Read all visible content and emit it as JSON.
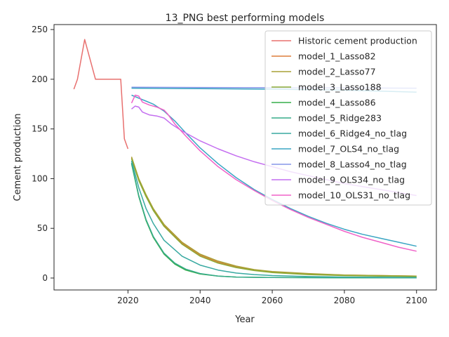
{
  "chart_data": {
    "type": "line",
    "title": "13_PNG best performing models",
    "xlabel": "Year",
    "ylabel": "Cement production",
    "xlim": [
      1999.5,
      2105.5
    ],
    "ylim": [
      -12,
      255
    ],
    "xticks": [
      2020,
      2040,
      2060,
      2080,
      2100
    ],
    "yticks": [
      0,
      50,
      100,
      150,
      200,
      250
    ],
    "grid": false,
    "legend": "top-right",
    "series": [
      {
        "name": "Historic cement production",
        "color": "#e8706f",
        "x": [
          2005,
          2006,
          2008,
          2011,
          2012,
          2018,
          2019,
          2020
        ],
        "y": [
          190,
          200,
          240,
          200,
          200,
          200,
          140,
          130
        ]
      },
      {
        "name": "model_1_Lasso82",
        "color": "#dd7e3a",
        "x": [
          2021,
          2023,
          2025,
          2027,
          2030,
          2035,
          2040,
          2045,
          2050,
          2055,
          2060,
          2070,
          2080,
          2090,
          2100
        ],
        "y": [
          121,
          99,
          83,
          69,
          53,
          35,
          23,
          16,
          11,
          8,
          6,
          4,
          3,
          2.5,
          2
        ]
      },
      {
        "name": "model_2_Lasso77",
        "color": "#a8a136",
        "x": [
          2021,
          2023,
          2025,
          2027,
          2030,
          2035,
          2040,
          2045,
          2050,
          2055,
          2060,
          2070,
          2080,
          2090,
          2100
        ],
        "y": [
          122,
          100,
          84,
          70,
          54,
          36,
          24,
          17,
          12,
          8.5,
          6.5,
          4.5,
          3,
          2.5,
          2
        ]
      },
      {
        "name": "model_3_Lasso188",
        "color": "#8aab35",
        "x": [
          2021,
          2023,
          2025,
          2027,
          2030,
          2035,
          2040,
          2045,
          2050,
          2055,
          2060,
          2070,
          2080,
          2090,
          2100
        ],
        "y": [
          120,
          98,
          82,
          68,
          52,
          34,
          22,
          15,
          10.5,
          7.5,
          5.5,
          3.5,
          2.5,
          2,
          1.5
        ]
      },
      {
        "name": "model_4_Lasso86",
        "color": "#36ad4a",
        "x": [
          2021,
          2023,
          2025,
          2027,
          2030,
          2033,
          2036,
          2040,
          2045,
          2050,
          2060,
          2080,
          2100
        ],
        "y": [
          115,
          82,
          58,
          41,
          24,
          14,
          8,
          4,
          2,
          1,
          0.5,
          0.3,
          0.2
        ]
      },
      {
        "name": "model_5_Ridge283",
        "color": "#36ab8a",
        "x": [
          2021,
          2023,
          2025,
          2027,
          2030,
          2033,
          2036,
          2040,
          2045,
          2050,
          2060,
          2080,
          2100
        ],
        "y": [
          116,
          83,
          59,
          42,
          25,
          15,
          9,
          4.5,
          2,
          1,
          0.5,
          0.3,
          0.2
        ]
      },
      {
        "name": "model_6_Ridge4_no_tlag",
        "color": "#38a9a1",
        "x": [
          2021,
          2023,
          2025,
          2027,
          2030,
          2035,
          2040,
          2045,
          2050,
          2055,
          2060,
          2070,
          2080,
          2090,
          2100
        ],
        "y": [
          118,
          91,
          70,
          55,
          38,
          22,
          13,
          8,
          5,
          3.5,
          2.5,
          1.5,
          1,
          0.8,
          0.5
        ]
      },
      {
        "name": "model_7_OLS4_no_tlag",
        "color": "#3aa5c3",
        "x": [
          2021,
          2023,
          2025,
          2027,
          2030,
          2033,
          2036,
          2040,
          2045,
          2050,
          2055,
          2060,
          2065,
          2070,
          2075,
          2080,
          2085,
          2090,
          2095,
          2100
        ],
        "y": [
          184,
          181,
          178,
          175,
          168,
          158,
          146,
          131,
          115,
          101,
          89,
          79,
          70,
          62,
          55,
          49,
          44,
          40,
          36,
          32
        ]
      },
      {
        "name": "model_8_Lasso4_no_tlag",
        "color": "#8696e8",
        "x": [
          2021,
          2040,
          2060,
          2080,
          2100
        ],
        "y": [
          192,
          191.7,
          191.5,
          191.3,
          191
        ]
      },
      {
        "name": "model_9_OLS34_no_tlag",
        "color": "#c46ef0",
        "x": [
          2021,
          2022,
          2023,
          2024,
          2026,
          2028,
          2030,
          2032,
          2035,
          2040,
          2045,
          2050,
          2055,
          2060,
          2065,
          2070,
          2075,
          2080,
          2085,
          2090,
          2095,
          2100
        ],
        "y": [
          170,
          173,
          172,
          167,
          164,
          163,
          161,
          155,
          148,
          138,
          130,
          123,
          117,
          112,
          107,
          103,
          99,
          95,
          92,
          89,
          86,
          83
        ]
      },
      {
        "name": "model_10_OLS31_no_tlag",
        "color": "#f062c8",
        "x": [
          2021,
          2022,
          2023,
          2024,
          2026,
          2028,
          2030,
          2031,
          2033,
          2036,
          2040,
          2045,
          2050,
          2055,
          2060,
          2065,
          2070,
          2075,
          2080,
          2085,
          2090,
          2095,
          2100
        ],
        "y": [
          176,
          184,
          183,
          177,
          174,
          172,
          169,
          165,
          155,
          143,
          128,
          112,
          99,
          88,
          78,
          69,
          61,
          54,
          47,
          41,
          36,
          31,
          27
        ]
      }
    ],
    "extra_lines": [
      {
        "color": "#3aa5c3",
        "x": [
          2021,
          2040,
          2060,
          2080,
          2100
        ],
        "y": [
          191,
          190.5,
          190,
          189,
          187
        ]
      }
    ]
  }
}
